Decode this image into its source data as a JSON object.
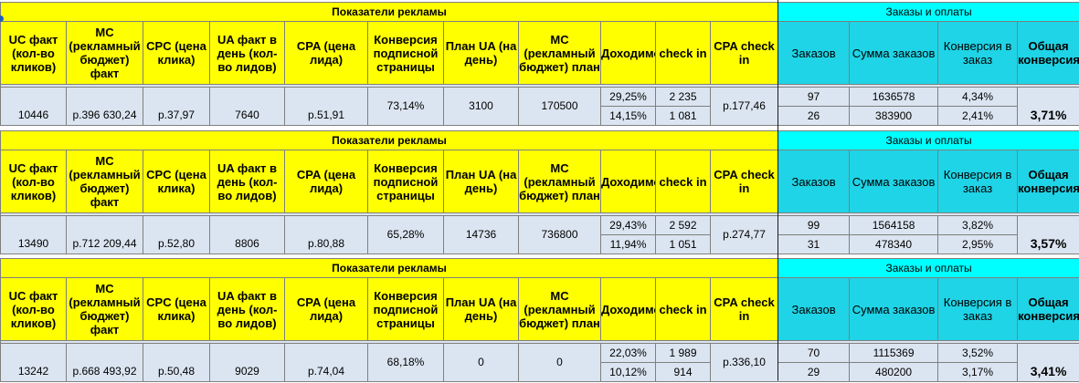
{
  "section_labels": {
    "advertising": "Показатели рекламы",
    "orders": "Заказы и оплаты"
  },
  "headers": {
    "uc": "UC факт (кол-во кликов)",
    "mc": "MC (рекламный бюджет) факт",
    "cpc": "CPC (цена клика)",
    "ua": "UA факт в день (кол-во лидов)",
    "cpa": "CPA (цена лида)",
    "conv_page": "Конверсия подписной страницы",
    "plan_ua": "План UA (на день)",
    "mc_plan": "MC (рекламный бюджет) план",
    "profit": "Доходимость",
    "checkin": "check in",
    "cpa_checkin": "CPA check in",
    "orders": "Заказов",
    "orders_sum": "Сумма заказов",
    "conv_order": "Конверсия в заказ",
    "total_conv": "Общая конверсия"
  },
  "blocks": [
    {
      "uc": "10446",
      "mc": "р.396 630,24",
      "cpc": "р.37,97",
      "ua": "7640",
      "cpa": "р.51,91",
      "conv_page": "73,14%",
      "plan_ua": "3100",
      "mc_plan": "170500",
      "profit_1": "29,25%",
      "profit_2": "14,15%",
      "checkin_1": "2 235",
      "checkin_2": "1 081",
      "cpa_checkin": "р.177,46",
      "orders_1": "97",
      "orders_2": "26",
      "sum_1": "1636578",
      "sum_2": "383900",
      "conv_order_1": "4,34%",
      "conv_order_2": "2,41%",
      "total_conv": "3,71%"
    },
    {
      "uc": "13490",
      "mc": "р.712 209,44",
      "cpc": "р.52,80",
      "ua": "8806",
      "cpa": "р.80,88",
      "conv_page": "65,28%",
      "plan_ua": "14736",
      "mc_plan": "736800",
      "profit_1": "29,43%",
      "profit_2": "11,94%",
      "checkin_1": "2 592",
      "checkin_2": "1 051",
      "cpa_checkin": "р.274,77",
      "orders_1": "99",
      "orders_2": "31",
      "sum_1": "1564158",
      "sum_2": "478340",
      "conv_order_1": "3,82%",
      "conv_order_2": "2,95%",
      "total_conv": "3,57%"
    },
    {
      "uc": "13242",
      "mc": "р.668 493,92",
      "cpc": "р.50,48",
      "ua": "9029",
      "cpa": "р.74,04",
      "conv_page": "68,18%",
      "plan_ua": "0",
      "mc_plan": "0",
      "profit_1": "22,03%",
      "profit_2": "10,12%",
      "checkin_1": "1 989",
      "checkin_2": "914",
      "cpa_checkin": "р.336,10",
      "orders_1": "70",
      "orders_2": "29",
      "sum_1": "1115369",
      "sum_2": "480200",
      "conv_order_1": "3,52%",
      "conv_order_2": "3,17%",
      "total_conv": "3,41%"
    }
  ]
}
